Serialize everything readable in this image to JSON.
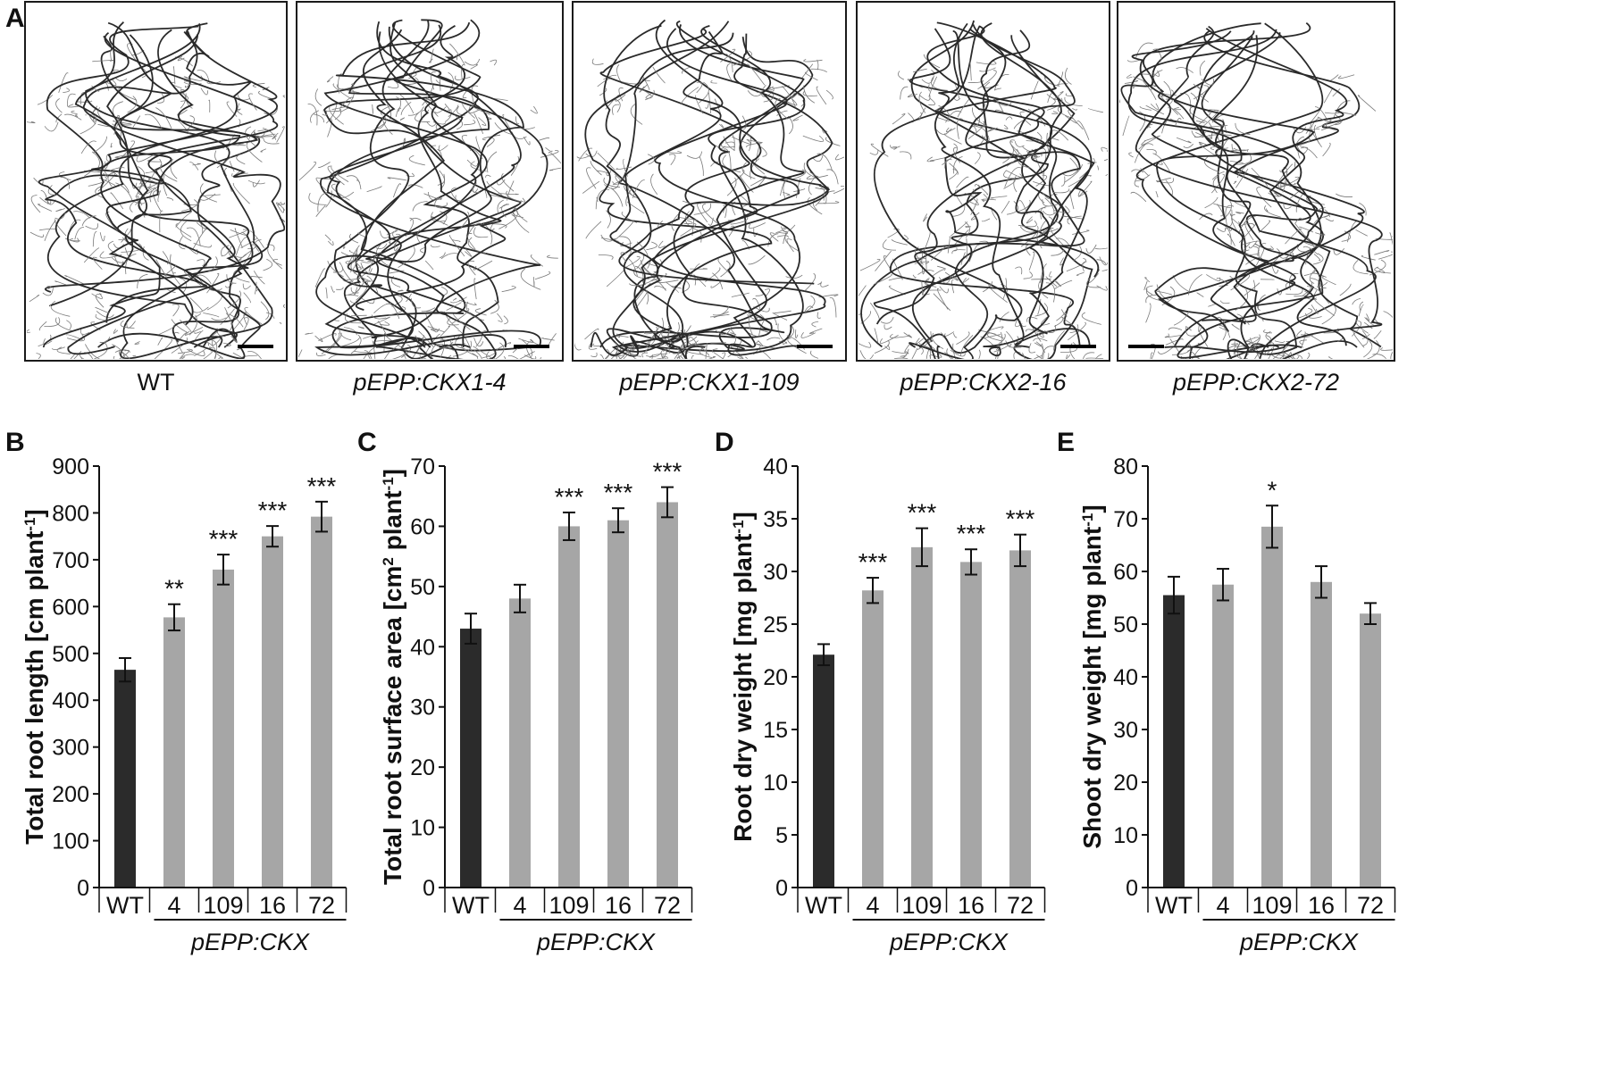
{
  "panels": {
    "A": "A",
    "B": "B",
    "C": "C",
    "D": "D",
    "E": "E"
  },
  "root_images": [
    {
      "label": "WT",
      "italic": false
    },
    {
      "label": "pEPP:CKX1-4",
      "italic": true
    },
    {
      "label": "pEPP:CKX1-109",
      "italic": true
    },
    {
      "label": "pEPP:CKX2-16",
      "italic": true
    },
    {
      "label": "pEPP:CKX2-72",
      "italic": true
    }
  ],
  "colors": {
    "wt_bar": "#2b2b2b",
    "transgenic_bar": "#a6a6a6",
    "axis": "#111111",
    "root_stroke": "#2a2a2a"
  },
  "chart_data": [
    {
      "panel": "B",
      "type": "bar",
      "categories": [
        "WT",
        "4",
        "109",
        "16",
        "72"
      ],
      "group_label": "pEPP:CKX",
      "values": [
        465,
        577,
        679,
        750,
        792
      ],
      "errors": [
        25,
        28,
        32,
        22,
        32
      ],
      "significance": [
        "",
        "**",
        "***",
        "***",
        "***"
      ],
      "ylabel_main": "Total root length [cm plant",
      "ylabel_sup": "-1",
      "ylabel_end": "]",
      "ylim": [
        0,
        900
      ],
      "yticks": [
        0,
        100,
        200,
        300,
        400,
        500,
        600,
        700,
        800,
        900
      ]
    },
    {
      "panel": "C",
      "type": "bar",
      "categories": [
        "WT",
        "4",
        "109",
        "16",
        "72"
      ],
      "group_label": "pEPP:CKX",
      "values": [
        43,
        48,
        60,
        61,
        64
      ],
      "errors": [
        2.5,
        2.3,
        2.3,
        2.0,
        2.5
      ],
      "significance": [
        "",
        "",
        "***",
        "***",
        "***"
      ],
      "ylabel_main": "Total root surface area [cm",
      "ylabel_sup1": "2",
      "ylabel_mid": " plant",
      "ylabel_sup": "-1",
      "ylabel_end": "]",
      "ylim": [
        0,
        70
      ],
      "yticks": [
        0,
        10,
        20,
        30,
        40,
        50,
        60,
        70
      ]
    },
    {
      "panel": "D",
      "type": "bar",
      "categories": [
        "WT",
        "4",
        "109",
        "16",
        "72"
      ],
      "group_label": "pEPP:CKX",
      "values": [
        22.1,
        28.2,
        32.3,
        30.9,
        32.0
      ],
      "errors": [
        1.0,
        1.2,
        1.8,
        1.2,
        1.5
      ],
      "significance": [
        "",
        "***",
        "***",
        "***",
        "***"
      ],
      "ylabel_main": "Root dry weight [mg plant",
      "ylabel_sup": "-1",
      "ylabel_end": "]",
      "ylim": [
        0,
        40
      ],
      "yticks": [
        0,
        5,
        10,
        15,
        20,
        25,
        30,
        35,
        40
      ]
    },
    {
      "panel": "E",
      "type": "bar",
      "categories": [
        "WT",
        "4",
        "109",
        "16",
        "72"
      ],
      "group_label": "pEPP:CKX",
      "values": [
        55.5,
        57.5,
        68.5,
        58.0,
        52.0
      ],
      "errors": [
        3.5,
        3.0,
        4.0,
        3.0,
        2.0
      ],
      "significance": [
        "",
        "",
        "*",
        "",
        ""
      ],
      "ylabel_main": "Shoot dry weight [mg plant",
      "ylabel_sup": "-1",
      "ylabel_end": "]",
      "ylim": [
        0,
        80
      ],
      "yticks": [
        0,
        10,
        20,
        30,
        40,
        50,
        60,
        70,
        80
      ]
    }
  ]
}
